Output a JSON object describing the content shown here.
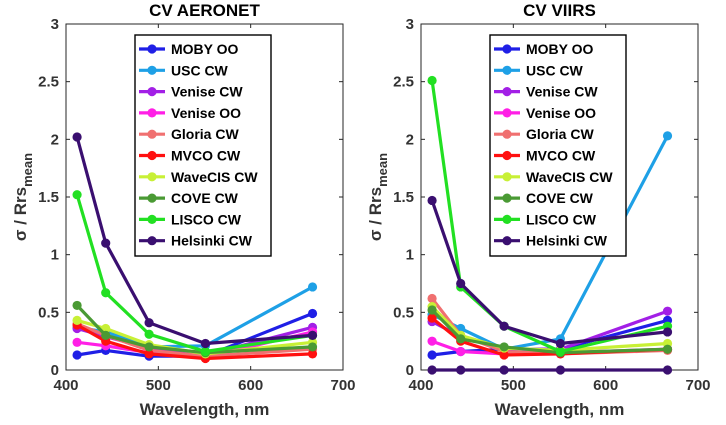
{
  "chart_data": [
    {
      "type": "line",
      "title": "CV AERONET",
      "xlabel": "Wavelength, nm",
      "ylabel_prefix": "σ / Rrs",
      "ylabel_subscript": "mean",
      "xlim": [
        400,
        700
      ],
      "ylim": [
        0,
        3
      ],
      "xticks": [
        400,
        500,
        600,
        700
      ],
      "yticks": [
        0,
        0.5,
        1,
        1.5,
        2,
        2.5,
        3
      ],
      "ytick_labels": [
        "0",
        "0.5",
        "1",
        "1.5",
        "2",
        "2.5",
        "3"
      ],
      "legend_position": "top-right",
      "x": [
        412,
        443,
        490,
        551,
        667
      ],
      "series": [
        {
          "name": "MOBY OO",
          "color": "#1f1fe6",
          "values": [
            0.13,
            0.17,
            0.12,
            0.12,
            0.49
          ]
        },
        {
          "name": "USC CW",
          "color": "#1ea0e6",
          "values": [
            0.37,
            0.33,
            0.2,
            0.21,
            0.72
          ]
        },
        {
          "name": "Venise CW",
          "color": "#a21fe6",
          "values": [
            0.36,
            0.29,
            0.19,
            0.13,
            0.37
          ]
        },
        {
          "name": "Venise OO",
          "color": "#ff1fe6",
          "values": [
            0.24,
            0.21,
            0.15,
            0.11,
            0.33
          ]
        },
        {
          "name": "Gloria CW",
          "color": "#f07070",
          "values": [
            0.4,
            0.3,
            0.17,
            0.12,
            0.18
          ]
        },
        {
          "name": "MVCO CW",
          "color": "#ff1010",
          "values": [
            0.39,
            0.25,
            0.14,
            0.1,
            0.14
          ]
        },
        {
          "name": "WaveCIS CW",
          "color": "#c8f036",
          "values": [
            0.43,
            0.36,
            0.22,
            0.14,
            0.24
          ]
        },
        {
          "name": "COVE CW",
          "color": "#4a9a34",
          "values": [
            0.56,
            0.3,
            0.2,
            0.15,
            0.2
          ]
        },
        {
          "name": "LISCO CW",
          "color": "#22e022",
          "values": [
            1.52,
            0.67,
            0.31,
            0.16,
            0.3
          ]
        },
        {
          "name": "Helsinki CW",
          "color": "#3a0f70",
          "values": [
            2.02,
            1.1,
            0.41,
            0.23,
            0.3
          ]
        }
      ]
    },
    {
      "type": "line",
      "title": "CV VIIRS",
      "xlabel": "Wavelength, nm",
      "ylabel_prefix": "σ / Rrs",
      "ylabel_subscript": "mean",
      "xlim": [
        400,
        700
      ],
      "ylim": [
        0,
        3
      ],
      "xticks": [
        400,
        500,
        600,
        700
      ],
      "yticks": [
        0,
        0.5,
        1,
        1.5,
        2,
        2.5,
        3
      ],
      "ytick_labels": [
        "0",
        "0.5",
        "1",
        "1.5",
        "2",
        "2.5",
        "3"
      ],
      "legend_position": "top-right",
      "x": [
        412,
        443,
        490,
        551,
        667
      ],
      "series": [
        {
          "name": "MOBY OO",
          "color": "#1f1fe6",
          "values": [
            0.13,
            0.16,
            0.18,
            0.18,
            0.43
          ]
        },
        {
          "name": "USC CW",
          "color": "#1ea0e6",
          "values": [
            0.48,
            0.36,
            0.18,
            0.27,
            2.03
          ]
        },
        {
          "name": "Venise CW",
          "color": "#a21fe6",
          "values": [
            0.42,
            0.29,
            0.18,
            0.18,
            0.51
          ]
        },
        {
          "name": "Venise OO",
          "color": "#ff1fe6",
          "values": [
            0.25,
            0.16,
            0.14,
            0.15,
            0.18
          ]
        },
        {
          "name": "Gloria CW",
          "color": "#f07070",
          "values": [
            0.62,
            0.3,
            0.16,
            0.14,
            0.17
          ]
        },
        {
          "name": "MVCO CW",
          "color": "#ff1010",
          "values": [
            0.45,
            0.25,
            0.13,
            0.14,
            0.18
          ]
        },
        {
          "name": "WaveCIS CW",
          "color": "#c8f036",
          "values": [
            0.55,
            0.3,
            0.19,
            0.17,
            0.23
          ]
        },
        {
          "name": "COVE CW",
          "color": "#4a9a34",
          "values": [
            0.52,
            0.27,
            0.2,
            0.15,
            0.18
          ]
        },
        {
          "name": "LISCO CW",
          "color": "#22e022",
          "values": [
            2.51,
            0.72,
            0.38,
            0.16,
            0.38
          ]
        },
        {
          "name": "Helsinki CW",
          "color": "#3a0f70",
          "values": [
            1.47,
            0.75,
            0.38,
            0.23,
            0.33
          ]
        },
        {
          "name": "",
          "color": "#3a0f70",
          "values": [
            0.0,
            0.0,
            0.0,
            0.0,
            0.0
          ]
        }
      ]
    }
  ]
}
